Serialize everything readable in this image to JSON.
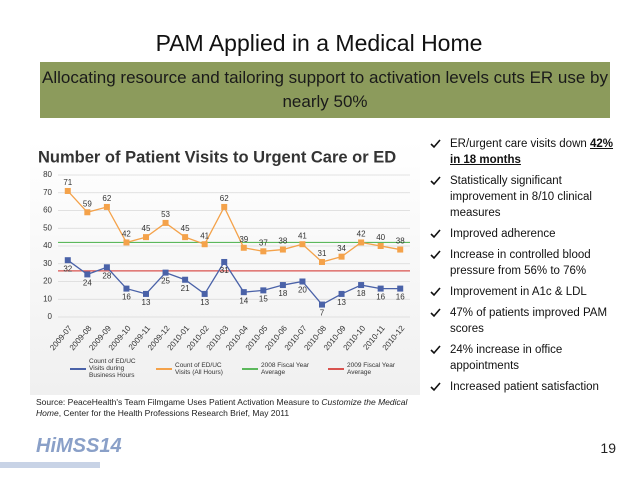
{
  "title": "PAM Applied in a Medical Home",
  "banner": "Allocating resource and tailoring support to activation levels cuts ER use by nearly 50%",
  "chart_data": {
    "type": "line",
    "title": "Number of Patient Visits to Urgent Care or ED",
    "categories": [
      "2009-07",
      "2009-08",
      "2009-09",
      "2009-10",
      "2009-11",
      "2009-12",
      "2010-01",
      "2010-02",
      "2010-03",
      "2010-04",
      "2010-05",
      "2010-06",
      "2010-07",
      "2010-08",
      "2010-09",
      "2010-10",
      "2010-11",
      "2010-12"
    ],
    "series": [
      {
        "name": "Count of ED/UC Visits during Business Hours",
        "color": "#4a62a8",
        "marker": "square",
        "values": [
          32,
          24,
          28,
          16,
          13,
          25,
          21,
          13,
          31,
          14,
          15,
          18,
          20,
          7,
          13,
          18,
          16,
          16
        ]
      },
      {
        "name": "Count of ED/UC Visits (All Hours)",
        "color": "#f4a24a",
        "marker": "square",
        "values": [
          71,
          59,
          62,
          42,
          45,
          53,
          45,
          41,
          62,
          39,
          37,
          38,
          41,
          31,
          34,
          42,
          40,
          38
        ]
      }
    ],
    "reference_lines": [
      {
        "name": "2008 Fiscal Year Average",
        "color": "#5cb85c",
        "value": 42
      },
      {
        "name": "2009 Fiscal Year Average",
        "color": "#d9534f",
        "value": 26
      }
    ],
    "ylim": [
      0,
      80
    ],
    "yticks": [
      0,
      10,
      20,
      30,
      40,
      50,
      60,
      70,
      80
    ],
    "grid": true
  },
  "source": {
    "prefix": "Source:  PeaceHealth's Team Filmgame Uses Patient Activation Measure to ",
    "italic": "Customize the Medical Home",
    "suffix": ", Center for the Health Professions Research Brief, May 2011"
  },
  "bullets": [
    {
      "text": "ER/urgent care visits down ",
      "emphasis": "42% in 18 months"
    },
    {
      "text": "Statistically significant improvement in 8/10 clinical measures"
    },
    {
      "text": "Improved adherence"
    },
    {
      "text": "Increase in controlled blood pressure from 56% to 76%"
    },
    {
      "text": "Improvement in A1c & LDL"
    },
    {
      "text": "47% of patients improved PAM scores"
    },
    {
      "text": "24% increase in office appointments"
    },
    {
      "text": "Increased patient satisfaction"
    }
  ],
  "logo": "HiMSS14",
  "page_number": "19"
}
